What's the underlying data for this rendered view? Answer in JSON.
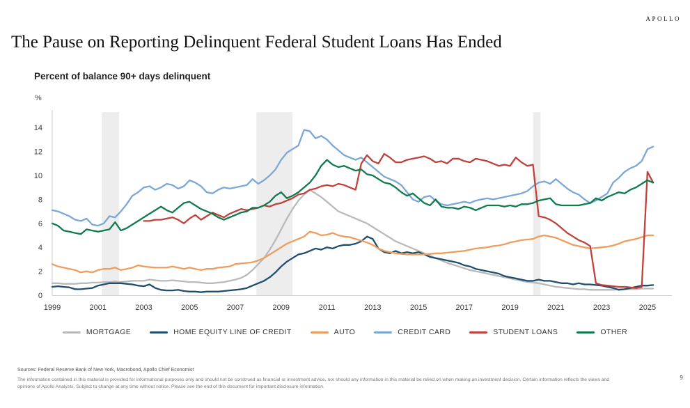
{
  "header": {
    "logo": "APOLLO",
    "title": "The Pause on Reporting Delinquent Federal Student Loans Has Ended"
  },
  "chart": {
    "subtitle": "Percent of balance 90+ days delinquent",
    "unit_label": "%"
  },
  "chart_data": {
    "type": "line",
    "title": "Percent of balance 90+ days delinquent",
    "xlabel": "",
    "ylabel": "%",
    "x_unit": "year (quarterly data)",
    "x_start": 1999,
    "x_step": 0.25,
    "x_end": 2025.25,
    "x_ticks": [
      1999,
      2001,
      2003,
      2005,
      2007,
      2009,
      2011,
      2013,
      2015,
      2017,
      2019,
      2021,
      2023,
      2025
    ],
    "y_ticks": [
      0,
      2,
      4,
      6,
      8,
      10,
      12,
      14
    ],
    "ylim": [
      0,
      14.8
    ],
    "grid": false,
    "legend_position": "bottom",
    "band_color": "#ededed",
    "recession_bands": [
      [
        2001.17,
        2001.92
      ],
      [
        2007.92,
        2009.5
      ],
      [
        2020.0,
        2020.33
      ]
    ],
    "series": [
      {
        "name": "MORTGAGE",
        "color": "#b9b9b9",
        "values": [
          1.0,
          1.0,
          0.95,
          0.95,
          0.95,
          1.0,
          1.0,
          1.05,
          1.05,
          1.1,
          1.1,
          1.15,
          1.1,
          1.15,
          1.2,
          1.2,
          1.2,
          1.3,
          1.25,
          1.2,
          1.2,
          1.25,
          1.2,
          1.15,
          1.1,
          1.1,
          1.05,
          1.0,
          1.0,
          1.05,
          1.1,
          1.2,
          1.3,
          1.45,
          1.7,
          2.1,
          2.6,
          3.1,
          3.8,
          4.6,
          5.5,
          6.4,
          7.2,
          7.9,
          8.4,
          8.8,
          8.5,
          8.2,
          7.8,
          7.4,
          7.0,
          6.8,
          6.6,
          6.4,
          6.2,
          6.0,
          5.7,
          5.4,
          5.1,
          4.8,
          4.5,
          4.3,
          4.1,
          3.9,
          3.7,
          3.5,
          3.3,
          3.1,
          2.9,
          2.7,
          2.55,
          2.4,
          2.25,
          2.1,
          2.0,
          1.9,
          1.8,
          1.7,
          1.6,
          1.5,
          1.4,
          1.3,
          1.2,
          1.1,
          1.05,
          1.0,
          0.9,
          0.8,
          0.7,
          0.65,
          0.6,
          0.55,
          0.5,
          0.5,
          0.45,
          0.45,
          0.45,
          0.45,
          0.45,
          0.5,
          0.5,
          0.5,
          0.5,
          0.55,
          0.55,
          0.55
        ]
      },
      {
        "name": "HOME EQUITY LINE OF CREDIT",
        "color": "#1f4d6e",
        "values": [
          0.7,
          0.75,
          0.7,
          0.65,
          0.5,
          0.5,
          0.55,
          0.6,
          0.8,
          0.9,
          1.0,
          1.0,
          1.0,
          0.95,
          0.9,
          0.8,
          0.75,
          0.9,
          0.6,
          0.45,
          0.4,
          0.4,
          0.45,
          0.35,
          0.3,
          0.3,
          0.25,
          0.3,
          0.3,
          0.3,
          0.35,
          0.4,
          0.45,
          0.5,
          0.6,
          0.8,
          1.0,
          1.2,
          1.5,
          1.9,
          2.4,
          2.8,
          3.1,
          3.4,
          3.5,
          3.7,
          3.9,
          3.8,
          4.0,
          3.9,
          4.1,
          4.2,
          4.2,
          4.3,
          4.5,
          4.9,
          4.7,
          3.9,
          3.6,
          3.5,
          3.7,
          3.5,
          3.6,
          3.5,
          3.6,
          3.4,
          3.2,
          3.1,
          3.0,
          2.9,
          2.8,
          2.7,
          2.5,
          2.4,
          2.2,
          2.1,
          2.0,
          1.9,
          1.8,
          1.6,
          1.5,
          1.4,
          1.3,
          1.2,
          1.2,
          1.3,
          1.2,
          1.2,
          1.1,
          1.0,
          1.0,
          0.9,
          1.0,
          0.9,
          0.9,
          0.85,
          0.8,
          0.7,
          0.6,
          0.45,
          0.5,
          0.6,
          0.7,
          0.8,
          0.8,
          0.85
        ]
      },
      {
        "name": "AUTO",
        "color": "#ed9d5d",
        "values": [
          2.6,
          2.4,
          2.3,
          2.2,
          2.1,
          1.9,
          2.0,
          1.9,
          2.1,
          2.2,
          2.2,
          2.3,
          2.1,
          2.2,
          2.3,
          2.5,
          2.4,
          2.35,
          2.3,
          2.3,
          2.3,
          2.4,
          2.3,
          2.2,
          2.3,
          2.2,
          2.1,
          2.2,
          2.2,
          2.3,
          2.35,
          2.4,
          2.6,
          2.65,
          2.7,
          2.75,
          2.9,
          3.1,
          3.4,
          3.7,
          4.0,
          4.3,
          4.5,
          4.7,
          4.9,
          5.3,
          5.2,
          5.0,
          5.05,
          5.2,
          5.0,
          4.9,
          4.85,
          4.7,
          4.55,
          4.4,
          4.2,
          3.9,
          3.7,
          3.6,
          3.5,
          3.45,
          3.4,
          3.4,
          3.4,
          3.4,
          3.45,
          3.5,
          3.5,
          3.55,
          3.6,
          3.65,
          3.7,
          3.8,
          3.9,
          3.95,
          4.0,
          4.1,
          4.15,
          4.25,
          4.4,
          4.5,
          4.6,
          4.65,
          4.7,
          4.9,
          5.0,
          4.9,
          4.8,
          4.6,
          4.4,
          4.2,
          4.1,
          4.0,
          3.9,
          3.95,
          4.0,
          4.05,
          4.15,
          4.3,
          4.5,
          4.6,
          4.7,
          4.85,
          5.0,
          5.0
        ]
      },
      {
        "name": "CREDIT CARD",
        "color": "#7aa7d7",
        "values": [
          7.1,
          7.0,
          6.8,
          6.6,
          6.3,
          6.2,
          6.4,
          5.9,
          5.8,
          6.0,
          6.6,
          6.5,
          7.0,
          7.6,
          8.3,
          8.6,
          9.0,
          9.1,
          8.8,
          9.0,
          9.3,
          9.2,
          8.9,
          9.1,
          9.6,
          9.4,
          9.1,
          8.6,
          8.5,
          8.8,
          9.0,
          8.9,
          9.0,
          9.1,
          9.2,
          9.7,
          9.3,
          9.6,
          10.0,
          10.5,
          11.3,
          11.9,
          12.2,
          12.5,
          13.8,
          13.7,
          13.1,
          13.3,
          13.0,
          12.5,
          12.1,
          11.7,
          11.5,
          11.3,
          11.5,
          11.1,
          10.7,
          10.3,
          9.9,
          9.7,
          9.5,
          9.2,
          8.6,
          8.0,
          7.8,
          8.2,
          8.3,
          7.9,
          7.6,
          7.5,
          7.6,
          7.7,
          7.8,
          7.7,
          7.9,
          8.0,
          8.1,
          8.0,
          8.1,
          8.2,
          8.3,
          8.4,
          8.5,
          8.7,
          9.1,
          9.4,
          9.5,
          9.3,
          9.7,
          9.3,
          8.9,
          8.6,
          8.4,
          8.0,
          7.7,
          7.9,
          8.2,
          8.5,
          9.4,
          9.8,
          10.3,
          10.6,
          10.8,
          11.2,
          12.2,
          12.4
        ]
      },
      {
        "name": "STUDENT LOANS",
        "color": "#c0403a",
        "values": [
          null,
          null,
          null,
          null,
          null,
          null,
          null,
          null,
          null,
          null,
          null,
          null,
          null,
          null,
          null,
          null,
          6.2,
          6.2,
          6.3,
          6.3,
          6.4,
          6.5,
          6.3,
          6.0,
          6.4,
          6.7,
          6.3,
          6.6,
          6.9,
          6.7,
          6.5,
          6.8,
          7.0,
          7.2,
          7.1,
          7.2,
          7.3,
          7.5,
          7.4,
          7.6,
          7.7,
          7.9,
          8.1,
          8.4,
          8.5,
          8.8,
          8.9,
          9.1,
          9.2,
          9.1,
          9.3,
          9.2,
          9.0,
          8.8,
          11.0,
          11.7,
          11.2,
          11.0,
          11.8,
          11.5,
          11.1,
          11.1,
          11.3,
          11.4,
          11.5,
          11.6,
          11.4,
          11.1,
          11.2,
          11.0,
          11.4,
          11.4,
          11.2,
          11.1,
          11.4,
          11.3,
          11.2,
          11.0,
          10.8,
          10.9,
          10.8,
          11.5,
          11.1,
          10.8,
          10.9,
          6.6,
          6.5,
          6.3,
          6.0,
          5.6,
          5.2,
          4.9,
          4.6,
          4.4,
          4.1,
          1.0,
          0.85,
          0.8,
          0.75,
          0.7,
          0.7,
          0.65,
          0.6,
          0.7,
          10.3,
          9.4
        ]
      },
      {
        "name": "OTHER",
        "color": "#0e7a4e",
        "values": [
          6.0,
          5.8,
          5.4,
          5.3,
          5.2,
          5.1,
          5.5,
          5.4,
          5.3,
          5.4,
          5.5,
          6.1,
          5.4,
          5.6,
          5.9,
          6.2,
          6.5,
          6.8,
          7.1,
          7.4,
          7.1,
          6.9,
          7.3,
          7.7,
          7.8,
          7.5,
          7.2,
          7.0,
          6.8,
          6.5,
          6.3,
          6.5,
          6.7,
          6.9,
          7.0,
          7.3,
          7.3,
          7.5,
          7.8,
          8.3,
          8.6,
          8.1,
          8.3,
          8.6,
          9.0,
          9.4,
          10.0,
          10.8,
          11.3,
          10.9,
          10.7,
          10.8,
          10.6,
          10.4,
          10.5,
          10.1,
          10.0,
          9.7,
          9.4,
          9.3,
          9.0,
          8.6,
          8.3,
          8.5,
          8.1,
          7.7,
          7.5,
          8.0,
          7.4,
          7.3,
          7.3,
          7.2,
          7.4,
          7.3,
          7.1,
          7.3,
          7.5,
          7.5,
          7.5,
          7.4,
          7.5,
          7.4,
          7.6,
          7.6,
          7.7,
          7.9,
          8.0,
          8.1,
          7.6,
          7.5,
          7.5,
          7.5,
          7.5,
          7.6,
          7.7,
          8.1,
          7.9,
          8.2,
          8.4,
          8.6,
          8.5,
          8.8,
          9.0,
          9.3,
          9.6,
          9.4
        ]
      }
    ]
  },
  "footer": {
    "sources": "Sources: Federal Reserve Bank of New York, Macrobond, Apollo Chief Economist",
    "disclaimer": "The information contained in this material is provided for informational purposes only and should not be construed as financial or investment advice, nor should any information in this material be relied on when making an investment decision. Certain information reflects the views and opinions of Apollo Analysts. Subject to change at any time without notice. Please see the end of this document for important disclosure information.",
    "page_number": "9"
  }
}
